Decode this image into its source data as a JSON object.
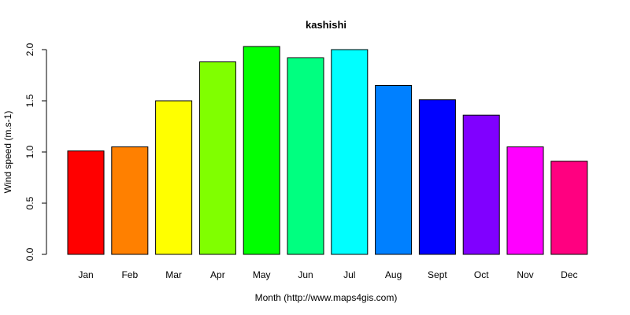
{
  "chart_data": {
    "type": "bar",
    "title": "kashishi",
    "xlabel": "Month (http://www.maps4gis.com)",
    "ylabel": "Wind speed (m.s-1)",
    "ylim": [
      0,
      2.0
    ],
    "yticks": [
      "0.0",
      "0.5",
      "1.0",
      "1.5",
      "2.0"
    ],
    "categories": [
      "Jan",
      "Feb",
      "Mar",
      "Apr",
      "May",
      "Jun",
      "Jul",
      "Aug",
      "Sept",
      "Oct",
      "Nov",
      "Dec"
    ],
    "values": [
      1.01,
      1.05,
      1.5,
      1.88,
      2.03,
      1.92,
      2.0,
      1.65,
      1.51,
      1.36,
      1.05,
      0.91
    ],
    "colors": [
      "#ff0000",
      "#ff8000",
      "#ffff00",
      "#80ff00",
      "#00ff00",
      "#00ff80",
      "#00ffff",
      "#0080ff",
      "#0000ff",
      "#8000ff",
      "#ff00ff",
      "#ff0080"
    ],
    "grid": false,
    "legend": "none"
  }
}
